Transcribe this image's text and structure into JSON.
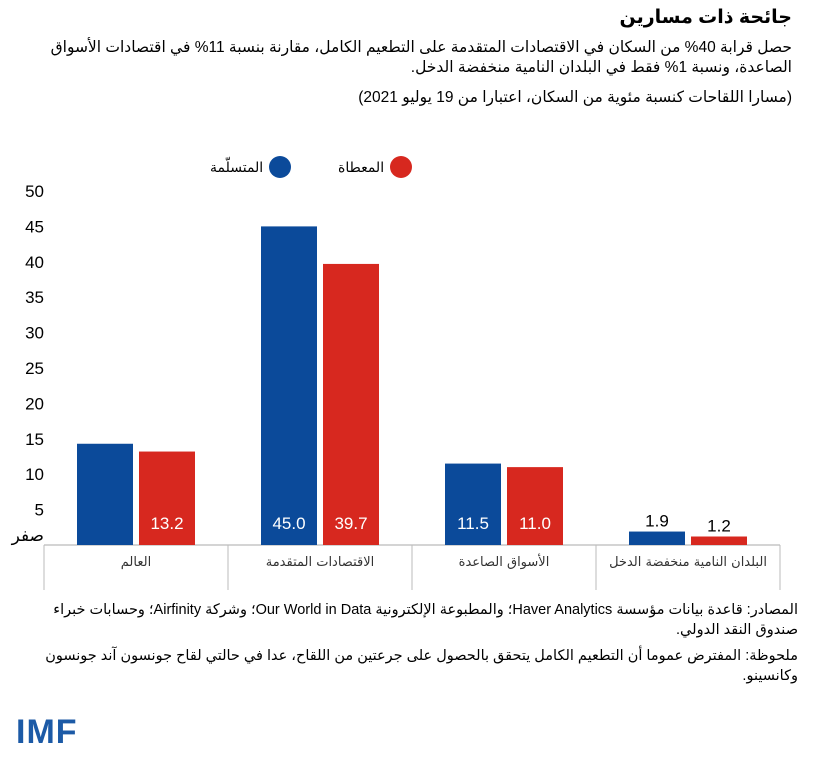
{
  "title": "جائحة ذات مسارين",
  "subtitle": "حصل قرابة 40% من السكان في الاقتصادات المتقدمة على التطعيم الكامل، مقارنة بنسبة 11% في اقتصادات الأسواق الصاعدة، ونسبة 1% فقط في البلدان النامية منخفضة الدخل.",
  "subnote": "(مسارا اللقاحات كنسبة مئوية من السكان، اعتبارا من 19 يوليو 2021)",
  "colors": {
    "primary": "#0b4a9a",
    "secondary": "#d7281f"
  },
  "chart_data": {
    "type": "bar",
    "categories": [
      "العالم",
      "الاقتصادات المتقدمة",
      "الأسواق الصاعدة",
      "البلدان النامية منخفضة الدخل"
    ],
    "series": [
      {
        "name": "المتسلّمة",
        "values": [
          14.3,
          45.0,
          11.5,
          1.9
        ],
        "labels": [
          "",
          "45.0",
          "11.5",
          "1.9"
        ]
      },
      {
        "name": "المعطاة",
        "values": [
          13.2,
          39.7,
          11.0,
          1.2
        ],
        "labels": [
          "13.2",
          "39.7",
          "11.0",
          "1.2"
        ]
      }
    ],
    "yticks": [
      "50",
      "45",
      "40",
      "35",
      "30",
      "25",
      "20",
      "15",
      "10",
      "5",
      "صفر"
    ],
    "ylim": [
      0,
      50
    ]
  },
  "footer": {
    "sources": "المصادر: قاعدة بيانات مؤسسة Haver Analytics؛ والمطبوعة الإلكترونية Our World in Data؛ وشركة Airfinity؛ وحسابات خبراء صندوق النقد الدولي.",
    "note": "ملحوظة: المفترض عموما أن التطعيم الكامل يتحقق بالحصول على جرعتين من اللقاح، عدا في حالتي لقاح جونسون آند جونسون وكانسينو."
  },
  "logo": "IMF"
}
